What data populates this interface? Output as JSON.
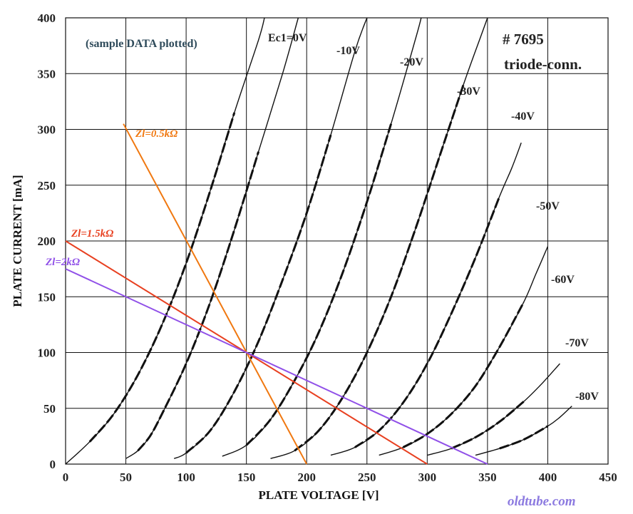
{
  "chart_data": {
    "type": "line",
    "title": "",
    "xlabel": "PLATE VOLTAGE [V]",
    "ylabel": "PLATE CURRENT [mA]",
    "xlim": [
      0,
      450
    ],
    "ylim": [
      0,
      400
    ],
    "x_ticks": [
      "0",
      "50",
      "100",
      "150",
      "200",
      "250",
      "300",
      "350",
      "400",
      "450"
    ],
    "y_ticks": [
      "0",
      "50",
      "100",
      "150",
      "200",
      "250",
      "300",
      "350",
      "400"
    ],
    "grid": true,
    "annotations": {
      "sample_note": "(sample DATA plotted)",
      "tube_number": "# 7695",
      "tube_mode": "triode-conn.",
      "credit": "oldtube.com"
    },
    "series": [
      {
        "name": "Ec1=0V",
        "label": "Ec1=0V",
        "points": [
          [
            0,
            0
          ],
          [
            20,
            20
          ],
          [
            40,
            45
          ],
          [
            60,
            80
          ],
          [
            80,
            125
          ],
          [
            100,
            180
          ],
          [
            120,
            245
          ],
          [
            140,
            315
          ],
          [
            160,
            380
          ],
          [
            165,
            400
          ]
        ]
      },
      {
        "name": "-10V",
        "label": "-10V",
        "points": [
          [
            50,
            5
          ],
          [
            60,
            12
          ],
          [
            70,
            25
          ],
          [
            80,
            45
          ],
          [
            100,
            90
          ],
          [
            120,
            145
          ],
          [
            140,
            210
          ],
          [
            160,
            280
          ],
          [
            180,
            350
          ],
          [
            193,
            400
          ]
        ]
      },
      {
        "name": "-20V",
        "label": "-20V",
        "points": [
          [
            90,
            5
          ],
          [
            100,
            10
          ],
          [
            120,
            30
          ],
          [
            140,
            65
          ],
          [
            160,
            110
          ],
          [
            180,
            165
          ],
          [
            200,
            225
          ],
          [
            220,
            295
          ],
          [
            240,
            370
          ],
          [
            250,
            400
          ]
        ]
      },
      {
        "name": "-30V",
        "label": "-30V",
        "points": [
          [
            130,
            7
          ],
          [
            150,
            17
          ],
          [
            170,
            40
          ],
          [
            190,
            75
          ],
          [
            210,
            118
          ],
          [
            230,
            172
          ],
          [
            250,
            235
          ],
          [
            270,
            305
          ],
          [
            290,
            380
          ],
          [
            295,
            400
          ]
        ]
      },
      {
        "name": "-40V",
        "label": "-40V",
        "points": [
          [
            170,
            5
          ],
          [
            190,
            12
          ],
          [
            210,
            30
          ],
          [
            230,
            60
          ],
          [
            250,
            100
          ],
          [
            270,
            150
          ],
          [
            290,
            210
          ],
          [
            310,
            275
          ],
          [
            330,
            340
          ],
          [
            345,
            385
          ],
          [
            350,
            400
          ]
        ]
      },
      {
        "name": "-50V",
        "label": "-50V",
        "points": [
          [
            220,
            8
          ],
          [
            240,
            15
          ],
          [
            260,
            30
          ],
          [
            280,
            55
          ],
          [
            300,
            90
          ],
          [
            320,
            135
          ],
          [
            340,
            185
          ],
          [
            360,
            240
          ],
          [
            370,
            265
          ],
          [
            378,
            288
          ]
        ]
      },
      {
        "name": "-60V",
        "label": "-60V",
        "points": [
          [
            260,
            8
          ],
          [
            280,
            15
          ],
          [
            300,
            27
          ],
          [
            320,
            45
          ],
          [
            340,
            70
          ],
          [
            360,
            105
          ],
          [
            380,
            145
          ],
          [
            390,
            170
          ],
          [
            400,
            195
          ]
        ]
      },
      {
        "name": "-70V",
        "label": "-70V",
        "points": [
          [
            300,
            8
          ],
          [
            320,
            14
          ],
          [
            340,
            24
          ],
          [
            360,
            38
          ],
          [
            380,
            56
          ],
          [
            395,
            72
          ],
          [
            410,
            90
          ]
        ]
      },
      {
        "name": "-80V",
        "label": "-80V",
        "points": [
          [
            340,
            8
          ],
          [
            360,
            14
          ],
          [
            380,
            22
          ],
          [
            400,
            34
          ],
          [
            410,
            42
          ],
          [
            420,
            52
          ]
        ]
      }
    ],
    "load_lines": [
      {
        "name": "Zl=0.5kΩ",
        "label": "Zl=0.5kΩ",
        "color": "#f07810",
        "points": [
          [
            48,
            305
          ],
          [
            200,
            0
          ]
        ]
      },
      {
        "name": "Zl=1.5kΩ",
        "label": "Zl=1.5kΩ",
        "color": "#e84020",
        "points": [
          [
            0,
            200
          ],
          [
            300,
            0
          ]
        ]
      },
      {
        "name": "Zl=2kΩ",
        "label": "Zl=2kΩ",
        "color": "#9050e8",
        "points": [
          [
            0,
            175
          ],
          [
            350,
            0
          ]
        ]
      }
    ],
    "colors": {
      "curves": "#111111",
      "grid": "#111111"
    }
  }
}
